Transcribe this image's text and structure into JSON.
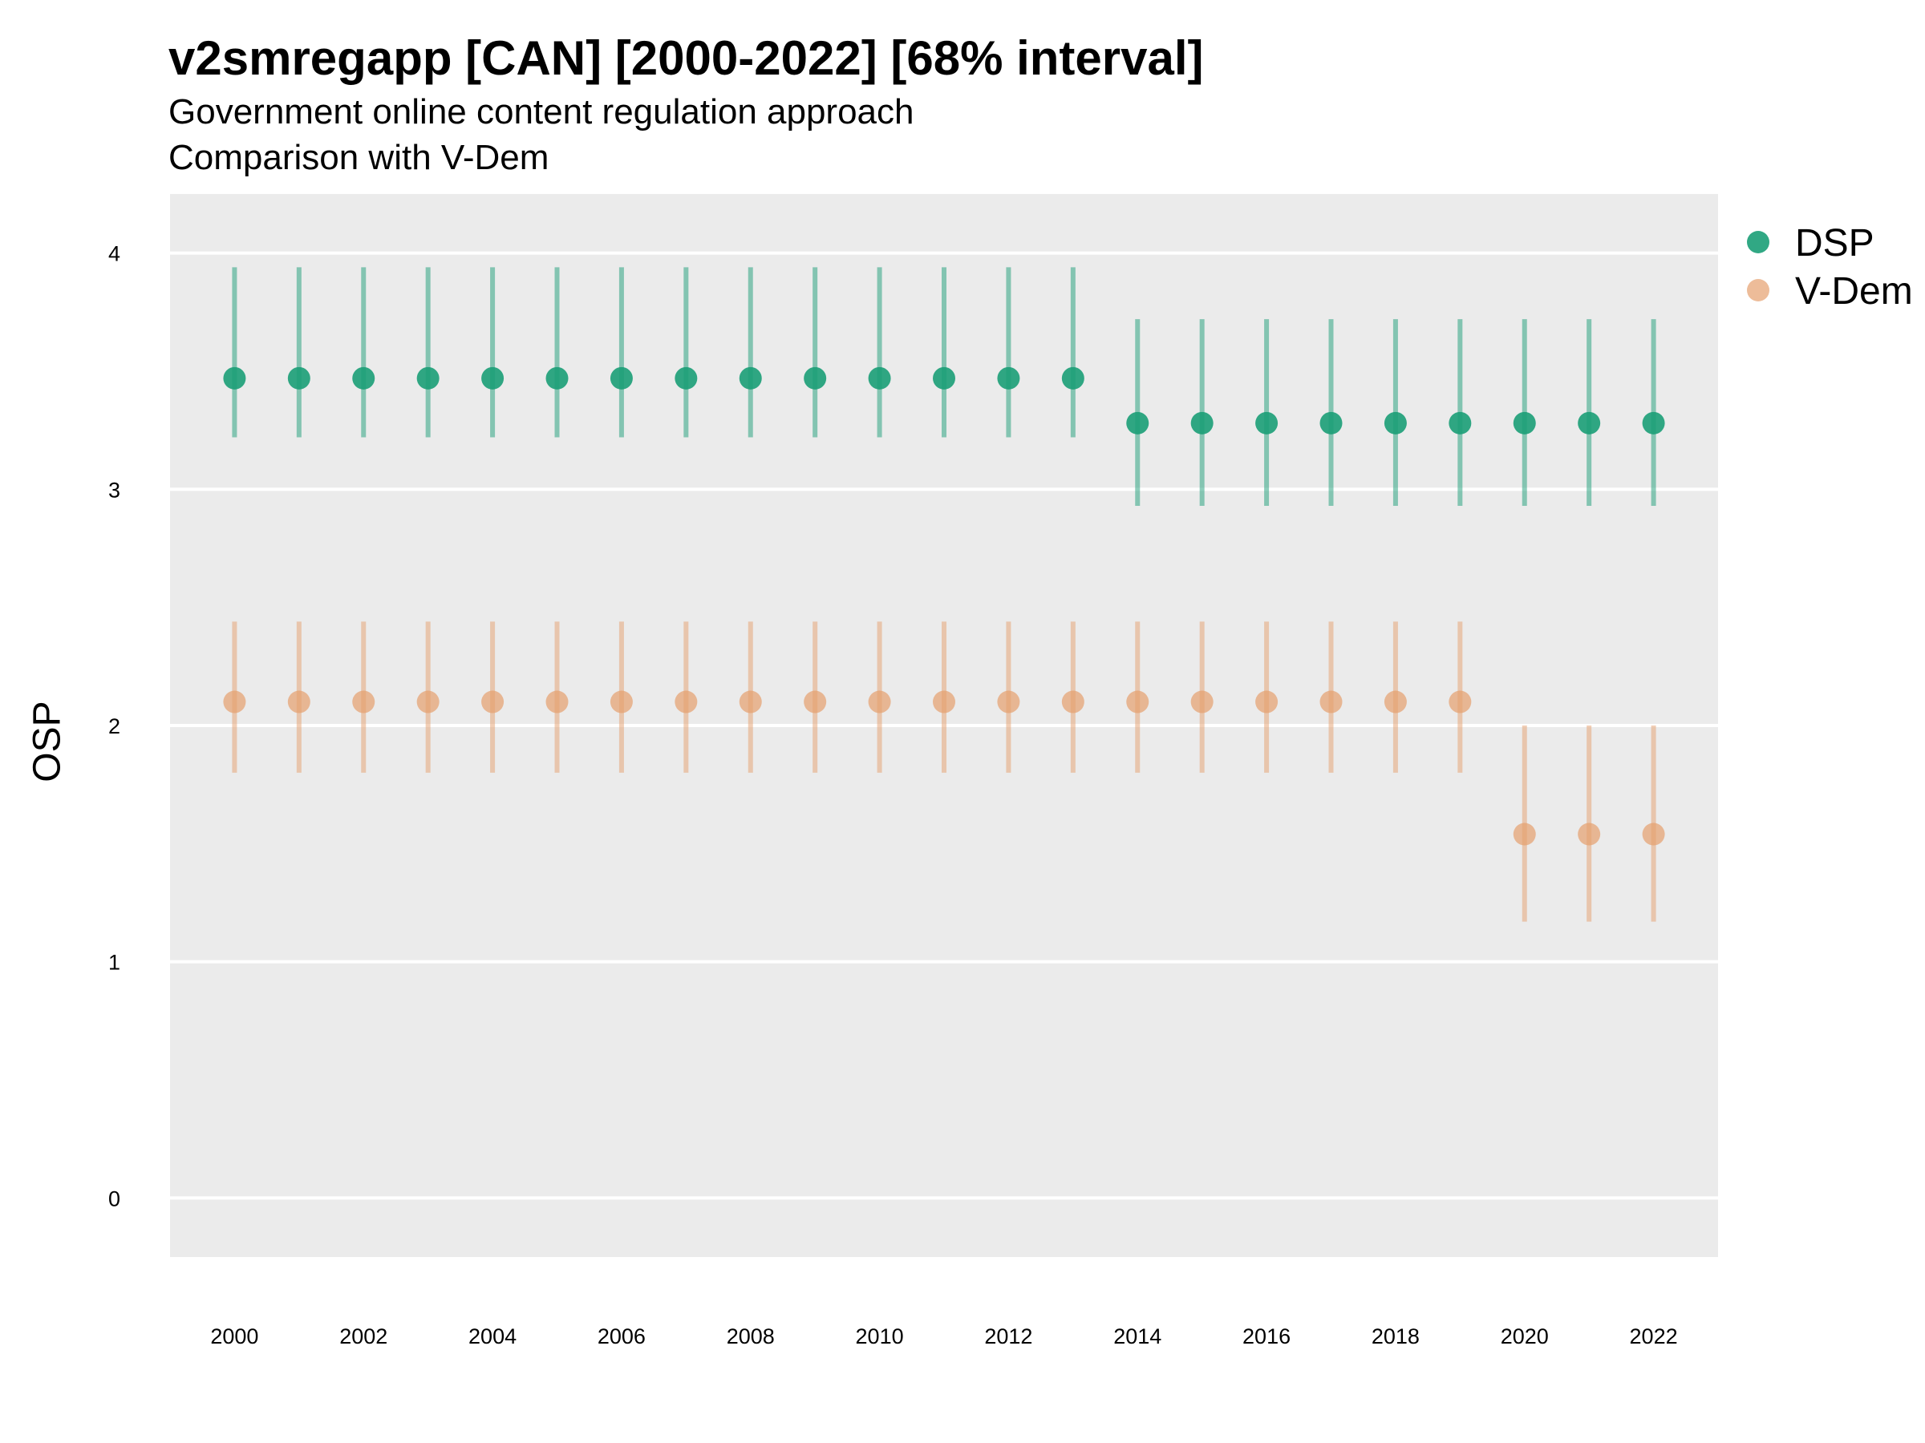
{
  "title": "v2smregapp [CAN] [2000-2022] [68% interval]",
  "subtitle_line1": "Government online content regulation approach",
  "subtitle_line2": "Comparison with V-Dem",
  "colors": {
    "panel_background": "#ebebeb",
    "gridline": "#ffffff",
    "DSP": "#1b9e77",
    "V-Dem": "#e6a06e"
  },
  "chart_data": {
    "type": "scatter",
    "error_bars": "68% interval",
    "ylabel": "OSP",
    "xlabel": "",
    "ylim": [
      -0.25,
      4.25
    ],
    "xlim": [
      1999,
      2023
    ],
    "y_ticks": [
      0,
      1,
      2,
      3,
      4
    ],
    "x_ticks": [
      2000,
      2002,
      2004,
      2006,
      2008,
      2010,
      2012,
      2014,
      2016,
      2018,
      2020,
      2022
    ],
    "grid": true,
    "legend_position": "right",
    "series": [
      {
        "name": "DSP",
        "color": "#1b9e77",
        "x": [
          2000,
          2001,
          2002,
          2003,
          2004,
          2005,
          2006,
          2007,
          2008,
          2009,
          2010,
          2011,
          2012,
          2013,
          2014,
          2015,
          2016,
          2017,
          2018,
          2019,
          2020,
          2021,
          2022
        ],
        "y": [
          3.47,
          3.47,
          3.47,
          3.47,
          3.47,
          3.47,
          3.47,
          3.47,
          3.47,
          3.47,
          3.47,
          3.47,
          3.47,
          3.47,
          3.28,
          3.28,
          3.28,
          3.28,
          3.28,
          3.28,
          3.28,
          3.28,
          3.28
        ],
        "lower": [
          3.22,
          3.22,
          3.22,
          3.22,
          3.22,
          3.22,
          3.22,
          3.22,
          3.22,
          3.22,
          3.22,
          3.22,
          3.22,
          3.22,
          2.93,
          2.93,
          2.93,
          2.93,
          2.93,
          2.93,
          2.93,
          2.93,
          2.93
        ],
        "upper": [
          3.94,
          3.94,
          3.94,
          3.94,
          3.94,
          3.94,
          3.94,
          3.94,
          3.94,
          3.94,
          3.94,
          3.94,
          3.94,
          3.94,
          3.72,
          3.72,
          3.72,
          3.72,
          3.72,
          3.72,
          3.72,
          3.72,
          3.72
        ]
      },
      {
        "name": "V-Dem",
        "color": "#e6a06e",
        "x": [
          2000,
          2001,
          2002,
          2003,
          2004,
          2005,
          2006,
          2007,
          2008,
          2009,
          2010,
          2011,
          2012,
          2013,
          2014,
          2015,
          2016,
          2017,
          2018,
          2019,
          2020,
          2021,
          2022
        ],
        "y": [
          2.1,
          2.1,
          2.1,
          2.1,
          2.1,
          2.1,
          2.1,
          2.1,
          2.1,
          2.1,
          2.1,
          2.1,
          2.1,
          2.1,
          2.1,
          2.1,
          2.1,
          2.1,
          2.1,
          2.1,
          1.54,
          1.54,
          1.54
        ],
        "lower": [
          1.8,
          1.8,
          1.8,
          1.8,
          1.8,
          1.8,
          1.8,
          1.8,
          1.8,
          1.8,
          1.8,
          1.8,
          1.8,
          1.8,
          1.8,
          1.8,
          1.8,
          1.8,
          1.8,
          1.8,
          1.17,
          1.17,
          1.17
        ],
        "upper": [
          2.44,
          2.44,
          2.44,
          2.44,
          2.44,
          2.44,
          2.44,
          2.44,
          2.44,
          2.44,
          2.44,
          2.44,
          2.44,
          2.44,
          2.44,
          2.44,
          2.44,
          2.44,
          2.44,
          2.44,
          2.0,
          2.0,
          2.0
        ]
      }
    ]
  }
}
